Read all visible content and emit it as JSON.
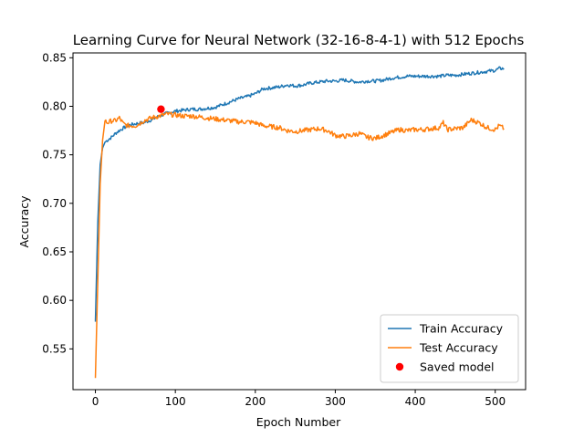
{
  "chart_data": {
    "type": "line",
    "title": "Learning Curve for Neural Network (32-16-8-4-1) with 512 Epochs",
    "xlabel": "Epoch Number",
    "ylabel": "Accuracy",
    "xlim": [
      -28,
      538
    ],
    "ylim": [
      0.508,
      0.855
    ],
    "xticks": [
      0,
      100,
      200,
      300,
      400,
      500
    ],
    "yticks": [
      0.55,
      0.6,
      0.65,
      0.7,
      0.75,
      0.8,
      0.85
    ],
    "grid": false,
    "legend_position": "lower-right",
    "series": [
      {
        "name": "Train Accuracy",
        "color": "#1f77b4",
        "points": [
          [
            0,
            0.578
          ],
          [
            3,
            0.68
          ],
          [
            6,
            0.74
          ],
          [
            9,
            0.757
          ],
          [
            12,
            0.763
          ],
          [
            15,
            0.765
          ],
          [
            20,
            0.768
          ],
          [
            25,
            0.772
          ],
          [
            30,
            0.775
          ],
          [
            40,
            0.78
          ],
          [
            50,
            0.782
          ],
          [
            60,
            0.783
          ],
          [
            70,
            0.786
          ],
          [
            80,
            0.79
          ],
          [
            90,
            0.793
          ],
          [
            100,
            0.795
          ],
          [
            110,
            0.796
          ],
          [
            120,
            0.797
          ],
          [
            130,
            0.797
          ],
          [
            140,
            0.798
          ],
          [
            150,
            0.799
          ],
          [
            160,
            0.802
          ],
          [
            170,
            0.805
          ],
          [
            180,
            0.808
          ],
          [
            190,
            0.81
          ],
          [
            200,
            0.813
          ],
          [
            210,
            0.818
          ],
          [
            220,
            0.819
          ],
          [
            230,
            0.82
          ],
          [
            240,
            0.822
          ],
          [
            250,
            0.821
          ],
          [
            260,
            0.822
          ],
          [
            270,
            0.824
          ],
          [
            280,
            0.825
          ],
          [
            290,
            0.826
          ],
          [
            300,
            0.826
          ],
          [
            310,
            0.827
          ],
          [
            320,
            0.826
          ],
          [
            330,
            0.825
          ],
          [
            340,
            0.826
          ],
          [
            350,
            0.826
          ],
          [
            360,
            0.827
          ],
          [
            370,
            0.829
          ],
          [
            380,
            0.83
          ],
          [
            390,
            0.831
          ],
          [
            400,
            0.831
          ],
          [
            410,
            0.831
          ],
          [
            420,
            0.831
          ],
          [
            430,
            0.831
          ],
          [
            440,
            0.832
          ],
          [
            450,
            0.832
          ],
          [
            460,
            0.833
          ],
          [
            470,
            0.834
          ],
          [
            480,
            0.835
          ],
          [
            490,
            0.836
          ],
          [
            500,
            0.837
          ],
          [
            505,
            0.839
          ],
          [
            511,
            0.839
          ]
        ]
      },
      {
        "name": "Test Accuracy",
        "color": "#ff7f0e",
        "points": [
          [
            0,
            0.52
          ],
          [
            3,
            0.62
          ],
          [
            6,
            0.72
          ],
          [
            9,
            0.765
          ],
          [
            12,
            0.785
          ],
          [
            15,
            0.783
          ],
          [
            20,
            0.785
          ],
          [
            25,
            0.785
          ],
          [
            30,
            0.788
          ],
          [
            35,
            0.782
          ],
          [
            40,
            0.78
          ],
          [
            50,
            0.78
          ],
          [
            55,
            0.782
          ],
          [
            60,
            0.785
          ],
          [
            70,
            0.788
          ],
          [
            80,
            0.79
          ],
          [
            90,
            0.792
          ],
          [
            100,
            0.791
          ],
          [
            110,
            0.79
          ],
          [
            120,
            0.79
          ],
          [
            130,
            0.789
          ],
          [
            140,
            0.788
          ],
          [
            150,
            0.787
          ],
          [
            160,
            0.786
          ],
          [
            170,
            0.785
          ],
          [
            180,
            0.784
          ],
          [
            190,
            0.784
          ],
          [
            200,
            0.783
          ],
          [
            210,
            0.78
          ],
          [
            220,
            0.779
          ],
          [
            230,
            0.778
          ],
          [
            240,
            0.775
          ],
          [
            250,
            0.774
          ],
          [
            260,
            0.775
          ],
          [
            270,
            0.776
          ],
          [
            280,
            0.777
          ],
          [
            290,
            0.775
          ],
          [
            300,
            0.77
          ],
          [
            310,
            0.769
          ],
          [
            320,
            0.77
          ],
          [
            330,
            0.772
          ],
          [
            340,
            0.768
          ],
          [
            350,
            0.767
          ],
          [
            360,
            0.77
          ],
          [
            370,
            0.773
          ],
          [
            380,
            0.776
          ],
          [
            390,
            0.775
          ],
          [
            400,
            0.776
          ],
          [
            410,
            0.776
          ],
          [
            420,
            0.777
          ],
          [
            430,
            0.778
          ],
          [
            435,
            0.783
          ],
          [
            440,
            0.776
          ],
          [
            450,
            0.777
          ],
          [
            460,
            0.778
          ],
          [
            470,
            0.786
          ],
          [
            480,
            0.783
          ],
          [
            490,
            0.778
          ],
          [
            500,
            0.776
          ],
          [
            505,
            0.78
          ],
          [
            511,
            0.777
          ]
        ]
      }
    ],
    "markers": [
      {
        "name": "Saved model",
        "color": "#ff0000",
        "x": 82,
        "y": 0.797
      }
    ]
  }
}
